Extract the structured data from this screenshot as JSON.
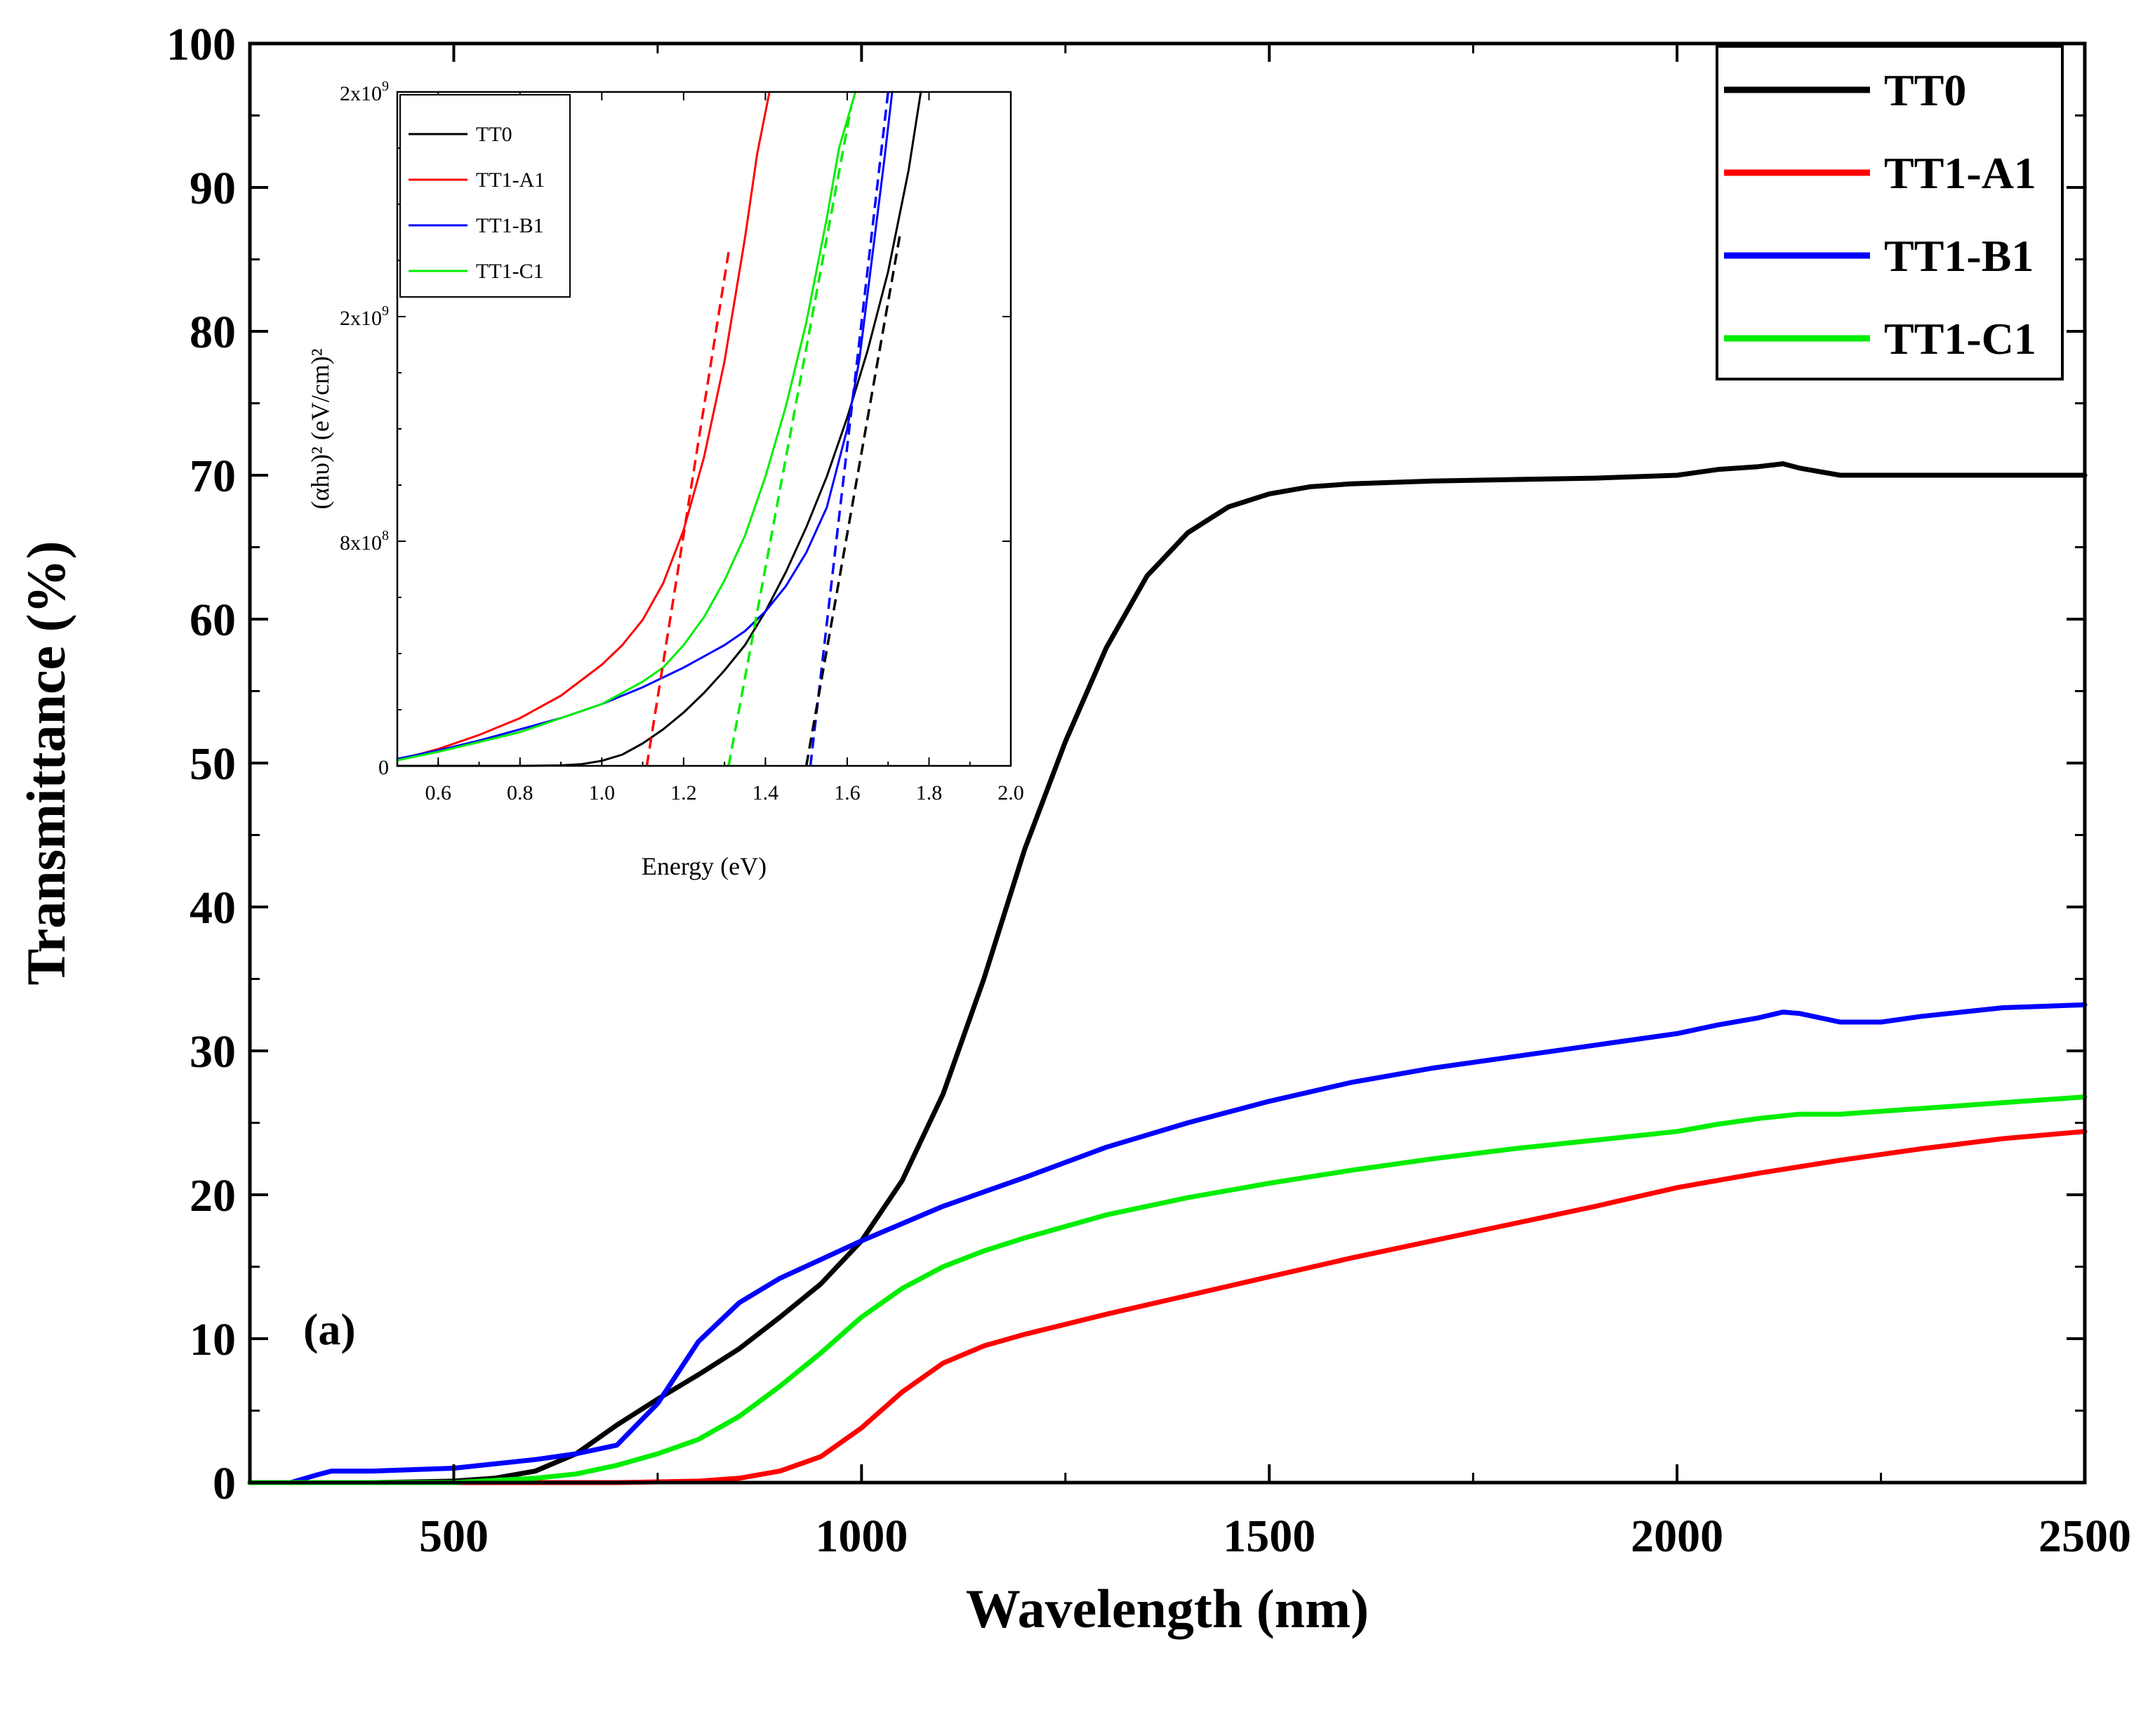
{
  "figure": {
    "panel_label": "(a)"
  },
  "chart_data": [
    {
      "id": "main",
      "type": "line",
      "title": "",
      "xlabel": "Wavelength (nm)",
      "ylabel": "Transmittance (%)",
      "xlim": [
        250,
        2500
      ],
      "ylim": [
        0,
        100
      ],
      "x_ticks": [
        500,
        1000,
        1500,
        2000,
        2500
      ],
      "x_tick_labels": [
        "500",
        "1000",
        "1500",
        "2000",
        "2500"
      ],
      "y_ticks": [
        0,
        10,
        20,
        30,
        40,
        50,
        60,
        70,
        80,
        90,
        100
      ],
      "y_tick_labels": [
        "0",
        "10",
        "20",
        "30",
        "40",
        "50",
        "60",
        "70",
        "80",
        "90",
        "100"
      ],
      "legend_position": "top-right",
      "series": [
        {
          "name": "TT0",
          "color": "#000000",
          "x": [
            250,
            400,
            500,
            550,
            600,
            650,
            700,
            750,
            800,
            850,
            900,
            950,
            1000,
            1050,
            1100,
            1150,
            1200,
            1250,
            1300,
            1350,
            1400,
            1450,
            1500,
            1550,
            1600,
            1700,
            1800,
            1900,
            2000,
            2050,
            2100,
            2130,
            2150,
            2200,
            2300,
            2400,
            2500
          ],
          "y": [
            0,
            0,
            0.1,
            0.3,
            0.8,
            2.0,
            4.0,
            5.8,
            7.5,
            9.3,
            11.5,
            13.8,
            16.8,
            21.0,
            27.0,
            35.0,
            44.0,
            51.5,
            58.0,
            63.0,
            66.0,
            67.8,
            68.7,
            69.2,
            69.4,
            69.6,
            69.7,
            69.8,
            70.0,
            70.4,
            70.6,
            70.8,
            70.5,
            70.0,
            70.0,
            70.0,
            70.0
          ]
        },
        {
          "name": "TT1-A1",
          "color": "#ff0000",
          "x": [
            250,
            700,
            800,
            850,
            900,
            950,
            1000,
            1050,
            1100,
            1150,
            1200,
            1300,
            1400,
            1500,
            1600,
            1700,
            1800,
            1900,
            2000,
            2100,
            2200,
            2300,
            2400,
            2500
          ],
          "y": [
            0,
            0,
            0.1,
            0.3,
            0.8,
            1.8,
            3.8,
            6.3,
            8.3,
            9.5,
            10.3,
            11.7,
            13.0,
            14.3,
            15.6,
            16.8,
            18.0,
            19.2,
            20.5,
            21.5,
            22.4,
            23.2,
            23.9,
            24.4
          ]
        },
        {
          "name": "TT1-B1",
          "color": "#0000ff",
          "x": [
            250,
            300,
            330,
            350,
            400,
            500,
            600,
            650,
            700,
            750,
            800,
            850,
            900,
            950,
            1000,
            1050,
            1100,
            1200,
            1300,
            1400,
            1500,
            1600,
            1700,
            1800,
            1900,
            2000,
            2050,
            2100,
            2130,
            2150,
            2200,
            2250,
            2300,
            2400,
            2500
          ],
          "y": [
            0,
            0,
            0.5,
            0.8,
            0.8,
            1.0,
            1.6,
            2.0,
            2.6,
            5.5,
            9.8,
            12.5,
            14.2,
            15.5,
            16.8,
            18.0,
            19.2,
            21.2,
            23.3,
            25.0,
            26.5,
            27.8,
            28.8,
            29.6,
            30.4,
            31.2,
            31.8,
            32.3,
            32.7,
            32.6,
            32.0,
            32.0,
            32.4,
            33.0,
            33.2
          ]
        },
        {
          "name": "TT1-C1",
          "color": "#00ee00",
          "x": [
            250,
            500,
            600,
            650,
            700,
            750,
            800,
            850,
            900,
            950,
            1000,
            1050,
            1100,
            1150,
            1200,
            1300,
            1400,
            1500,
            1600,
            1700,
            1800,
            1900,
            2000,
            2050,
            2100,
            2150,
            2200,
            2300,
            2400,
            2500
          ],
          "y": [
            0,
            0,
            0.3,
            0.6,
            1.2,
            2.0,
            3.0,
            4.6,
            6.7,
            9.0,
            11.5,
            13.5,
            15.0,
            16.1,
            17.0,
            18.6,
            19.8,
            20.8,
            21.7,
            22.5,
            23.2,
            23.8,
            24.4,
            24.9,
            25.3,
            25.6,
            25.6,
            26.0,
            26.4,
            26.8
          ]
        }
      ]
    },
    {
      "id": "inset",
      "type": "line",
      "title": "",
      "xlabel": "Energy (eV)",
      "ylabel": "(αhυ)² (eV/cm)²",
      "xlim": [
        0.5,
        2.0
      ],
      "ylim": [
        0,
        2400000000.0
      ],
      "x_ticks": [
        0.6,
        0.8,
        1.0,
        1.2,
        1.4,
        1.6,
        1.8,
        2.0
      ],
      "x_tick_labels": [
        "0.6",
        "0.8",
        "1.0",
        "1.2",
        "1.4",
        "1.6",
        "1.8",
        "2.0"
      ],
      "y_ticks": [
        0,
        800000000.0,
        1600000000.0,
        2400000000.0
      ],
      "y_tick_labels": [
        "0",
        "8x10",
        "2x10",
        "2x10"
      ],
      "y_tick_exponents": [
        "",
        "8",
        "9",
        "9"
      ],
      "legend_position": "top-left",
      "series": [
        {
          "name": "TT0",
          "color": "#000000",
          "x": [
            0.5,
            0.8,
            0.9,
            0.95,
            1.0,
            1.05,
            1.1,
            1.15,
            1.2,
            1.25,
            1.3,
            1.35,
            1.4,
            1.45,
            1.5,
            1.55,
            1.6,
            1.65,
            1.7,
            1.75,
            1.78
          ],
          "y": [
            0,
            0,
            2000000.0,
            6000000.0,
            18000000.0,
            40000000.0,
            80000000.0,
            130000000.0,
            190000000.0,
            260000000.0,
            340000000.0,
            430000000.0,
            550000000.0,
            690000000.0,
            850000000.0,
            1030000000.0,
            1240000000.0,
            1480000000.0,
            1760000000.0,
            2120000000.0,
            2400000000.0
          ]
        },
        {
          "name": "TT1-A1",
          "color": "#ff0000",
          "x": [
            0.5,
            0.6,
            0.7,
            0.8,
            0.9,
            1.0,
            1.05,
            1.1,
            1.15,
            1.2,
            1.25,
            1.3,
            1.35,
            1.38,
            1.41
          ],
          "y": [
            20000000.0,
            60000000.0,
            110000000.0,
            170000000.0,
            250000000.0,
            360000000.0,
            430000000.0,
            520000000.0,
            650000000.0,
            840000000.0,
            1100000000.0,
            1440000000.0,
            1880000000.0,
            2180000000.0,
            2400000000.0
          ]
        },
        {
          "name": "TT1-B1",
          "color": "#0000ff",
          "x": [
            0.5,
            0.6,
            0.7,
            0.8,
            0.9,
            1.0,
            1.1,
            1.2,
            1.3,
            1.35,
            1.4,
            1.45,
            1.5,
            1.55,
            1.6,
            1.63,
            1.66,
            1.69,
            1.71
          ],
          "y": [
            25000000.0,
            55000000.0,
            90000000.0,
            130000000.0,
            170000000.0,
            220000000.0,
            280000000.0,
            350000000.0,
            430000000.0,
            480000000.0,
            550000000.0,
            640000000.0,
            760000000.0,
            920000000.0,
            1200000000.0,
            1450000000.0,
            1800000000.0,
            2150000000.0,
            2400000000.0
          ]
        },
        {
          "name": "TT1-C1",
          "color": "#00ee00",
          "x": [
            0.5,
            0.6,
            0.7,
            0.8,
            0.9,
            1.0,
            1.1,
            1.15,
            1.2,
            1.25,
            1.3,
            1.35,
            1.4,
            1.45,
            1.5,
            1.55,
            1.58,
            1.62
          ],
          "y": [
            20000000.0,
            50000000.0,
            85000000.0,
            120000000.0,
            170000000.0,
            220000000.0,
            300000000.0,
            350000000.0,
            430000000.0,
            530000000.0,
            660000000.0,
            820000000.0,
            1030000000.0,
            1280000000.0,
            1580000000.0,
            1950000000.0,
            2200000000.0,
            2400000000.0
          ]
        }
      ],
      "tangent_lines": [
        {
          "series": "TT1-A1",
          "color": "#ff0000",
          "x": [
            1.11,
            1.31
          ],
          "y": [
            0,
            1830000000.0
          ]
        },
        {
          "series": "TT1-C1",
          "color": "#00ee00",
          "x": [
            1.31,
            1.61
          ],
          "y": [
            0,
            2350000000.0
          ]
        },
        {
          "series": "TT1-B1",
          "color": "#0000ff",
          "x": [
            1.51,
            1.7
          ],
          "y": [
            0,
            2400000000.0
          ]
        },
        {
          "series": "TT0",
          "color": "#000000",
          "x": [
            1.5,
            1.73
          ],
          "y": [
            0,
            1900000000.0
          ]
        }
      ]
    }
  ]
}
